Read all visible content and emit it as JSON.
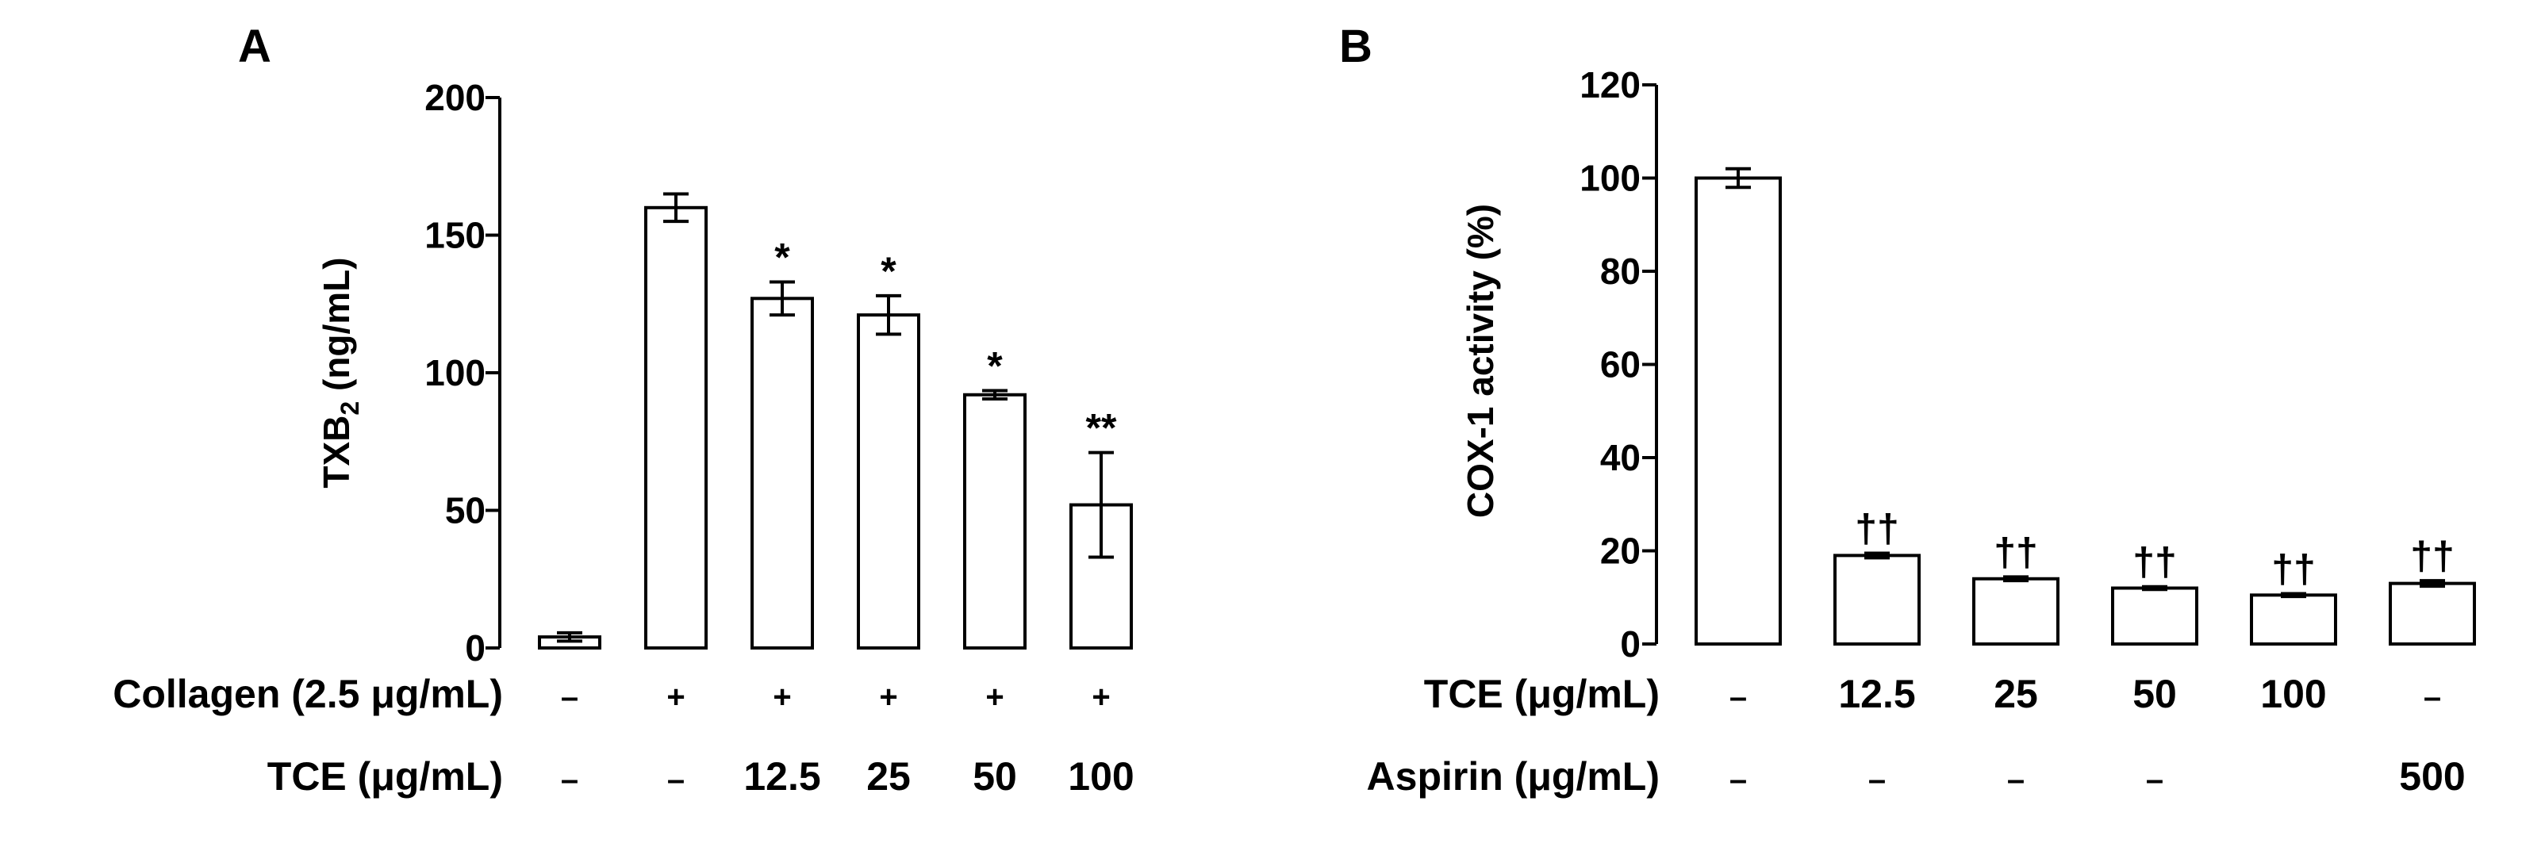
{
  "chart_data": [
    {
      "panel": "A",
      "type": "bar",
      "ylabel": {
        "main": "TXB",
        "sub": "2",
        "unit": " (ng/mL)"
      },
      "ylim": [
        0,
        200
      ],
      "yticks": [
        0,
        50,
        100,
        150,
        200
      ],
      "values": [
        4,
        160,
        127,
        121,
        92,
        52
      ],
      "errors": [
        1.5,
        5,
        6,
        7,
        1.5,
        19
      ],
      "significance": [
        "",
        "",
        "*",
        "*",
        "*",
        "**"
      ],
      "condition_rows": [
        {
          "label": "Collagen (2.5 μg/mL)",
          "values": [
            "–",
            "+",
            "+",
            "+",
            "+",
            "+"
          ]
        },
        {
          "label": "TCE (μg/mL)",
          "values": [
            "–",
            "–",
            "12.5",
            "25",
            "50",
            "100"
          ]
        }
      ]
    },
    {
      "panel": "B",
      "type": "bar",
      "ylabel": {
        "main": "COX-1 activity (%)",
        "sub": "",
        "unit": ""
      },
      "ylim": [
        0,
        120
      ],
      "yticks": [
        0,
        20,
        40,
        60,
        80,
        100,
        120
      ],
      "values": [
        100,
        19,
        14,
        12,
        10.5,
        13
      ],
      "errors": [
        2,
        0.5,
        0.4,
        0.3,
        0.3,
        0.6
      ],
      "significance": [
        "",
        "††",
        "††",
        "††",
        "††",
        "††"
      ],
      "condition_rows": [
        {
          "label": "TCE (μg/mL)",
          "values": [
            "–",
            "12.5",
            "25",
            "50",
            "100",
            "–"
          ]
        },
        {
          "label": "Aspirin (μg/mL)",
          "values": [
            "–",
            "–",
            "–",
            "–",
            "",
            "500"
          ]
        }
      ]
    }
  ],
  "colors": {
    "bar_fill": "#ffffff",
    "stroke": "#000000",
    "text": "#000000"
  }
}
